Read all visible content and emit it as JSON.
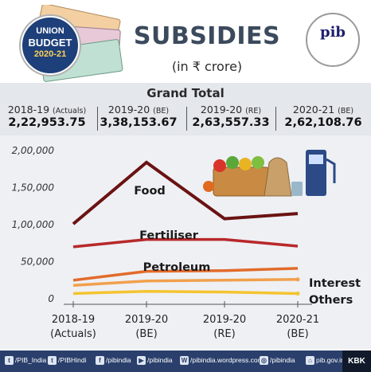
{
  "header": {
    "logo_lines": [
      "UNION",
      "BUDGET",
      "2020-21"
    ],
    "title": "SUBSIDIES",
    "subtitle": "(in ₹ crore)",
    "pib_logo": "pib"
  },
  "grand_total": {
    "title": "Grand Total",
    "columns": [
      {
        "year": "2018-19",
        "tag": "(Actuals)",
        "value": "2,22,953.75"
      },
      {
        "year": "2019-20",
        "tag": "(BE)",
        "value": "3,38,153.67"
      },
      {
        "year": "2019-20",
        "tag": "(RE)",
        "value": "2,63,557.33"
      },
      {
        "year": "2020-21",
        "tag": "(BE)",
        "value": "2,62,108.76"
      }
    ]
  },
  "chart_data": {
    "type": "line",
    "title": "",
    "xlabel": "",
    "ylabel": "",
    "categories": [
      "2018-19\n(Actuals)",
      "2019-20\n(BE)",
      "2019-20\n(RE)",
      "2020-21\n(BE)"
    ],
    "yticks": [
      "0",
      "50,000",
      "1,00,000",
      "1,50,000",
      "2,00,000"
    ],
    "ylim": [
      0,
      200000
    ],
    "grid": false,
    "series": [
      {
        "name": "Food",
        "values": [
          101000,
          184000,
          108000,
          115000
        ],
        "color": "#6b1212"
      },
      {
        "name": "Fertiliser",
        "values": [
          70000,
          80000,
          80000,
          71000
        ],
        "color": "#b8282a"
      },
      {
        "name": "Petroleum",
        "values": [
          25000,
          37000,
          38000,
          41000
        ],
        "color": "#e26b2a"
      },
      {
        "name": "Interest",
        "values": [
          18000,
          24000,
          25000,
          26000
        ],
        "color": "#f1a04d"
      },
      {
        "name": "Others",
        "values": [
          7000,
          10000,
          9000,
          7000
        ],
        "color": "#f4c430"
      }
    ]
  },
  "footer": {
    "items": [
      {
        "icon": "twitter-icon",
        "glyph": "t",
        "label": "/PIB_India"
      },
      {
        "icon": "twitter-icon",
        "glyph": "t",
        "label": "/PIBHindi"
      },
      {
        "icon": "facebook-icon",
        "glyph": "f",
        "label": "/pibindia"
      },
      {
        "icon": "youtube-icon",
        "glyph": "▶",
        "label": "/pibindia"
      },
      {
        "icon": "wordpress-icon",
        "glyph": "W",
        "label": "/pibindia.wordpress.com"
      },
      {
        "icon": "instagram-icon",
        "glyph": "◎",
        "label": "/pibindia"
      },
      {
        "icon": "web-icon",
        "glyph": "⌂",
        "label": "pib.gov.in"
      }
    ],
    "brand": "KBK"
  }
}
